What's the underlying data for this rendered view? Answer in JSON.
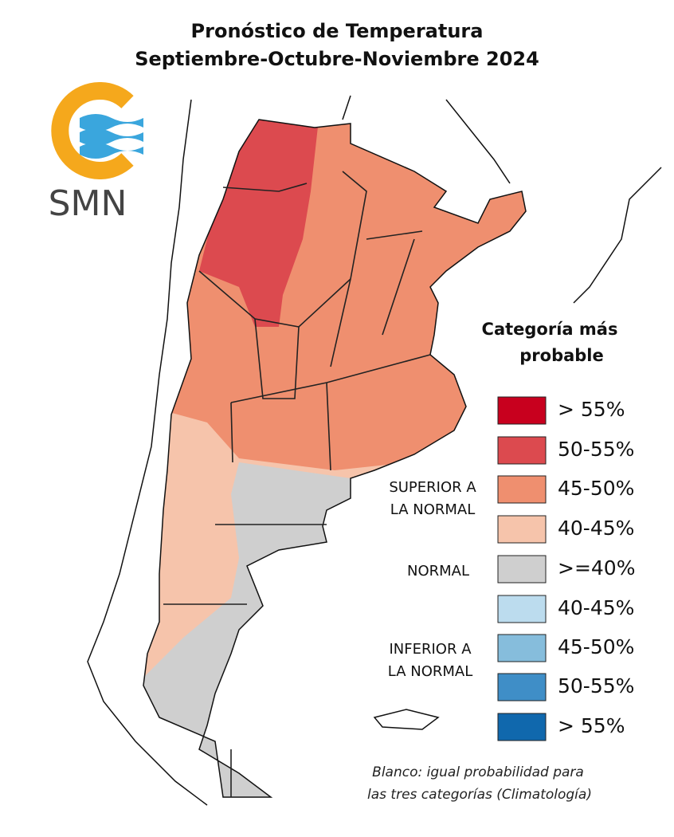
{
  "title": [
    "Pronóstico de Temperatura",
    "Septiembre-Octubre-Noviembre 2024"
  ],
  "logo": {
    "text": "SMN"
  },
  "legend": {
    "title": [
      "Categoría más",
      "probable"
    ],
    "items": [
      {
        "label": "> 55%",
        "color": "#c8001e"
      },
      {
        "label": "50-55%",
        "color": "#dc4a4f"
      },
      {
        "label": "45-50%",
        "color": "#ef8f6f"
      },
      {
        "label": "40-45%",
        "color": "#f6c4ab"
      },
      {
        "label": ">=40%",
        "color": "#cfcfcf"
      },
      {
        "label": "40-45%",
        "color": "#bcdcee"
      },
      {
        "label": "45-50%",
        "color": "#86bddc"
      },
      {
        "label": "50-55%",
        "color": "#3f8ec7"
      },
      {
        "label": "> 55%",
        "color": "#1068ad"
      }
    ],
    "groups": [
      {
        "lines": [
          "SUPERIOR A",
          "LA NORMAL"
        ]
      },
      {
        "lines": [
          "NORMAL"
        ]
      },
      {
        "lines": [
          "INFERIOR A",
          "LA NORMAL"
        ]
      }
    ]
  },
  "note": [
    "Blanco: igual probabilidad para",
    "las tres categorías (Climatología)"
  ]
}
